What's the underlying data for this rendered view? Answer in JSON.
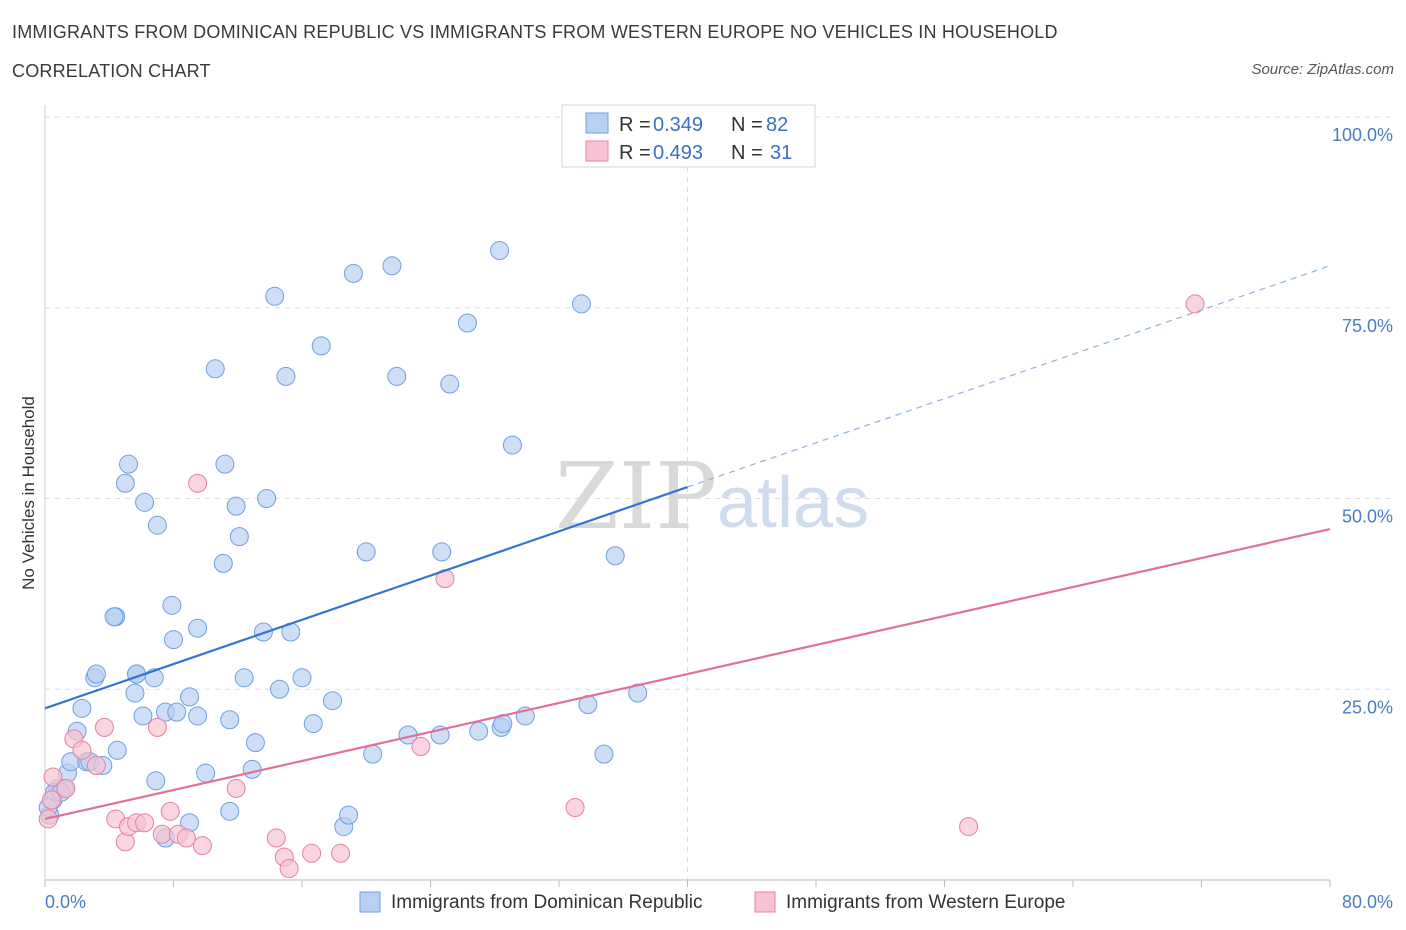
{
  "header": {
    "title": "IMMIGRANTS FROM DOMINICAN REPUBLIC VS IMMIGRANTS FROM WESTERN EUROPE NO VEHICLES IN HOUSEHOLD",
    "subtitle": "CORRELATION CHART",
    "source": "Source: ZipAtlas.com"
  },
  "watermark": {
    "zip": "ZIP",
    "atlas": "atlas"
  },
  "legend": {
    "r_label": "R =",
    "n_label": "N =",
    "items": [
      {
        "r": "0.349",
        "n": "82",
        "color": "#b8d0f2"
      },
      {
        "r": "0.493",
        "n": "31",
        "color": "#f7c3d3"
      }
    ]
  },
  "chart_data": {
    "type": "scatter",
    "xlabel": "",
    "ylabel": "No Vehicles in Household",
    "xlim": [
      0,
      80
    ],
    "ylim": [
      0,
      100
    ],
    "x_tick_labels": [
      "0.0%",
      "80.0%"
    ],
    "y_ticks": [
      25,
      50,
      75,
      100
    ],
    "y_tick_labels": [
      "25.0%",
      "50.0%",
      "75.0%",
      "100.0%"
    ],
    "grid": true,
    "legend_position": "top-center",
    "series": [
      {
        "name": "Immigrants from Dominican Republic",
        "color": "#6fa0e0",
        "fill": "#b8d0f2",
        "trend": {
          "x": [
            0,
            40
          ],
          "y": [
            22.5,
            51.5
          ],
          "dashed_to": [
            80,
            80.5
          ]
        },
        "points": [
          [
            0.3,
            8.5
          ],
          [
            0.5,
            10.5
          ],
          [
            0.8,
            12
          ],
          [
            1.2,
            12
          ],
          [
            1.4,
            14
          ],
          [
            1.6,
            15.5
          ],
          [
            2,
            19.5
          ],
          [
            2.6,
            15.5
          ],
          [
            2.8,
            15.5
          ],
          [
            3.6,
            15
          ],
          [
            2.3,
            22.5
          ],
          [
            3.1,
            26.5
          ],
          [
            4.4,
            34.5
          ],
          [
            4.3,
            34.5
          ],
          [
            3.2,
            27
          ],
          [
            4.5,
            17
          ],
          [
            5.7,
            27
          ],
          [
            5.6,
            24.5
          ],
          [
            6.1,
            21.5
          ],
          [
            5.7,
            27
          ],
          [
            6.8,
            26.5
          ],
          [
            7.5,
            22
          ],
          [
            8,
            31.5
          ],
          [
            8.2,
            22
          ],
          [
            9,
            24
          ],
          [
            9.5,
            33
          ],
          [
            9.5,
            21.5
          ],
          [
            11.5,
            21
          ],
          [
            12.4,
            26.5
          ],
          [
            10,
            14
          ],
          [
            11.5,
            9
          ],
          [
            6.9,
            13
          ],
          [
            7.5,
            5.5
          ],
          [
            9.0,
            7.5
          ],
          [
            12.9,
            14.5
          ],
          [
            13.1,
            18
          ],
          [
            13.6,
            32.5
          ],
          [
            14.6,
            25
          ],
          [
            15.3,
            32.5
          ],
          [
            16,
            26.5
          ],
          [
            16.7,
            20.5
          ],
          [
            17.9,
            23.5
          ],
          [
            18.6,
            7
          ],
          [
            18.9,
            8.5
          ],
          [
            20,
            43
          ],
          [
            20.4,
            16.5
          ],
          [
            22.6,
            19
          ],
          [
            24.6,
            19
          ],
          [
            24.7,
            43
          ],
          [
            27,
            19.5
          ],
          [
            28.4,
            20
          ],
          [
            28.5,
            20.5
          ],
          [
            29.9,
            21.5
          ],
          [
            33.8,
            23
          ],
          [
            34.8,
            16.5
          ],
          [
            36.9,
            24.5
          ],
          [
            35.5,
            42.5
          ],
          [
            5,
            52
          ],
          [
            5.2,
            54.5
          ],
          [
            6.2,
            49.5
          ],
          [
            7,
            46.5
          ],
          [
            11.1,
            41.5
          ],
          [
            12.1,
            45
          ],
          [
            11.9,
            49
          ],
          [
            13.8,
            50
          ],
          [
            7.9,
            36
          ],
          [
            10.6,
            67
          ],
          [
            11.2,
            54.5
          ],
          [
            14.3,
            76.5
          ],
          [
            15,
            66
          ],
          [
            17.2,
            70
          ],
          [
            19.2,
            79.5
          ],
          [
            21.6,
            80.5
          ],
          [
            21.9,
            66
          ],
          [
            25.2,
            65
          ],
          [
            26.3,
            73
          ],
          [
            28.3,
            82.5
          ],
          [
            29.1,
            57
          ],
          [
            33.4,
            75.5
          ],
          [
            0.6,
            11.5
          ],
          [
            1.0,
            11.5
          ],
          [
            0.2,
            9.5
          ]
        ]
      },
      {
        "name": "Immigrants from Western Europe",
        "color": "#e87fa3",
        "fill": "#f7c3d3",
        "trend": {
          "x": [
            0,
            80
          ],
          "y": [
            8,
            46
          ]
        },
        "points": [
          [
            0.2,
            8
          ],
          [
            0.5,
            13.5
          ],
          [
            1.3,
            12
          ],
          [
            1.8,
            18.5
          ],
          [
            2.3,
            17
          ],
          [
            3.2,
            15
          ],
          [
            3.7,
            20
          ],
          [
            4.4,
            8
          ],
          [
            5.0,
            5
          ],
          [
            5.2,
            7
          ],
          [
            5.7,
            7.5
          ],
          [
            6.2,
            7.5
          ],
          [
            7.0,
            20
          ],
          [
            7.3,
            6
          ],
          [
            7.8,
            9
          ],
          [
            8.3,
            6
          ],
          [
            8.8,
            5.5
          ],
          [
            9.8,
            4.5
          ],
          [
            11.9,
            12
          ],
          [
            9.5,
            52
          ],
          [
            14.4,
            5.5
          ],
          [
            14.9,
            3
          ],
          [
            15.2,
            1.5
          ],
          [
            16.6,
            3.5
          ],
          [
            18.4,
            3.5
          ],
          [
            23.4,
            17.5
          ],
          [
            24.9,
            39.5
          ],
          [
            33.0,
            9.5
          ],
          [
            57.5,
            7
          ],
          [
            71.6,
            75.5
          ],
          [
            0.4,
            10.5
          ]
        ]
      }
    ]
  }
}
